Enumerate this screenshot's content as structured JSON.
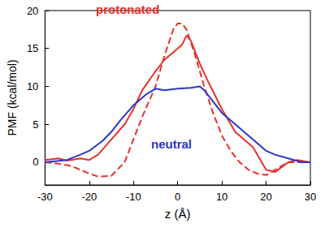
{
  "chart_data": {
    "type": "line",
    "x_label": "z (Å)",
    "y_label": "PMF (kcal/mol)",
    "xlim": [
      -30,
      30
    ],
    "xticks": [
      -30,
      -20,
      -10,
      0,
      10,
      20,
      30
    ],
    "ylim": [
      -3,
      20
    ],
    "yticks": [
      0,
      5,
      10,
      15,
      20
    ],
    "grid": false,
    "annotations": [
      {
        "text": "protonated",
        "color": "#e8302a"
      },
      {
        "text": "neutral",
        "color": "#2a36c8"
      }
    ],
    "series": [
      {
        "name": "protonated",
        "color": "#e8302a",
        "line_style": "solid",
        "x": [
          -30,
          -27,
          -25,
          -22,
          -20,
          -18,
          -15,
          -12,
          -10,
          -8,
          -5,
          -3,
          -1,
          0,
          1,
          2,
          3,
          5,
          7,
          10,
          13,
          15,
          17,
          19,
          20,
          22,
          25,
          27,
          30
        ],
        "values": [
          0.3,
          0.5,
          0.2,
          0.5,
          0.3,
          1,
          3,
          5,
          7,
          9.5,
          12,
          13.5,
          14.5,
          15,
          15.5,
          16.7,
          16,
          13,
          10.5,
          7,
          4,
          3,
          2,
          0,
          -1,
          -1.3,
          0,
          0.3,
          0
        ]
      },
      {
        "name": "protonated",
        "color": "#e8302a",
        "line_style": "dashed",
        "x": [
          -30,
          -27,
          -24,
          -20,
          -18,
          -15,
          -12,
          -10,
          -8,
          -5,
          -3,
          -1,
          0,
          1,
          2,
          4,
          6,
          8,
          10,
          12,
          14,
          16,
          18,
          20,
          22,
          25,
          28,
          30
        ],
        "values": [
          0,
          -0.2,
          -0.5,
          -1.5,
          -1.9,
          -1.8,
          0,
          3,
          6,
          10,
          14,
          17.5,
          18.3,
          18.3,
          17.5,
          14,
          10,
          6.5,
          3.5,
          1.5,
          0,
          -1,
          -1.5,
          -1.7,
          -1,
          0,
          0,
          0
        ]
      },
      {
        "name": "neutral",
        "color": "#2a36c8",
        "line_style": "solid",
        "x": [
          -30,
          -25,
          -22,
          -20,
          -17,
          -15,
          -13,
          -10,
          -7,
          -5,
          -3,
          0,
          3,
          5,
          6,
          8,
          10,
          12,
          15,
          18,
          20,
          22,
          25,
          28,
          30
        ],
        "values": [
          0,
          0.3,
          1,
          1.5,
          2.8,
          4,
          5.5,
          7.5,
          9,
          9.7,
          9.5,
          9.7,
          9.8,
          10,
          9.5,
          8,
          6.5,
          5.5,
          4,
          2.5,
          1.5,
          1,
          0.5,
          0,
          0
        ]
      }
    ]
  }
}
